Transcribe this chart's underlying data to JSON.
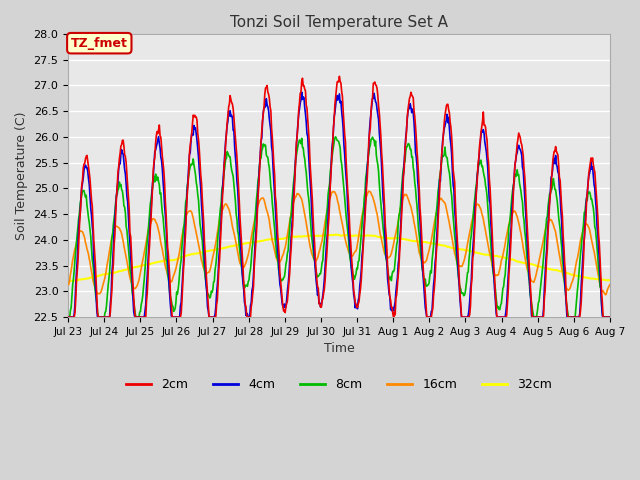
{
  "title": "Tonzi Soil Temperature Set A",
  "xlabel": "Time",
  "ylabel": "Soil Temperature (C)",
  "ylim": [
    22.5,
    28.0
  ],
  "fig_facecolor": "#d4d4d4",
  "axes_facecolor": "#e8e8e8",
  "grid_color": "white",
  "annotation_text": "TZ_fmet",
  "annotation_facecolor": "#ffffcc",
  "annotation_edgecolor": "#cc0000",
  "series": {
    "2cm": {
      "color": "#ee0000",
      "linewidth": 1.2
    },
    "4cm": {
      "color": "#0000dd",
      "linewidth": 1.2
    },
    "8cm": {
      "color": "#00bb00",
      "linewidth": 1.2
    },
    "16cm": {
      "color": "#ff8800",
      "linewidth": 1.2
    },
    "32cm": {
      "color": "#ffff00",
      "linewidth": 1.5
    }
  },
  "xtick_labels": [
    "Jul 23",
    "Jul 24",
    "Jul 25",
    "Jul 26",
    "Jul 27",
    "Jul 28",
    "Jul 29",
    "Jul 30",
    "Jul 31",
    "Aug 1",
    "Aug 2",
    "Aug 3",
    "Aug 4",
    "Aug 5",
    "Aug 6",
    "Aug 7"
  ],
  "n_days": 15,
  "spd": 48
}
